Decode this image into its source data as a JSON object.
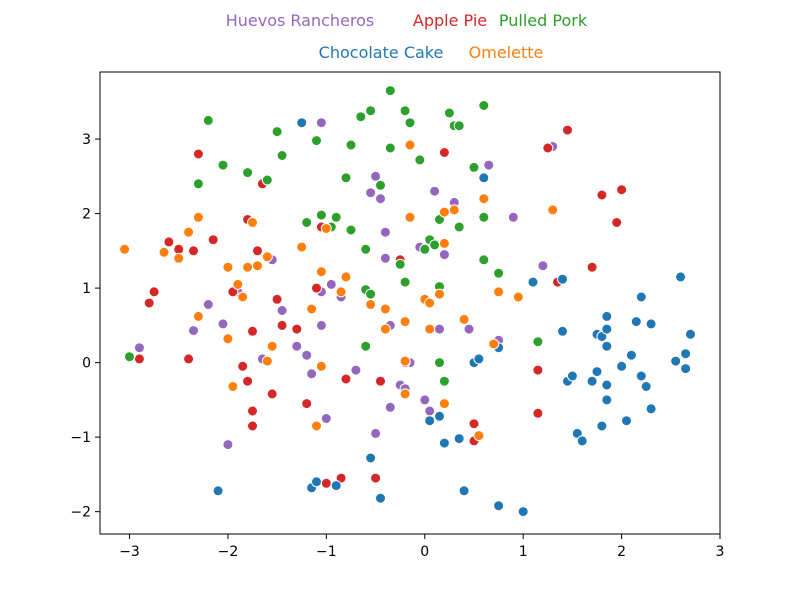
{
  "chart_data": {
    "type": "scatter",
    "title": "",
    "xlabel": "",
    "ylabel": "",
    "xlim": [
      -3.3,
      3.0
    ],
    "ylim": [
      -2.3,
      3.9
    ],
    "xticks": [
      -3,
      -2,
      -1,
      0,
      1,
      2,
      3
    ],
    "yticks": [
      -2,
      -1,
      0,
      1,
      2,
      3
    ],
    "xtick_labels": [
      "−3",
      "−2",
      "−1",
      "0",
      "1",
      "2",
      "3"
    ],
    "ytick_labels": [
      "−2",
      "−1",
      "0",
      "1",
      "2",
      "3"
    ],
    "grid": false,
    "legend_placement": "top-center",
    "series": [
      {
        "name": "Huevos Rancheros",
        "color": "#9467bd",
        "points": [
          [
            -2.9,
            0.2
          ],
          [
            -2.35,
            0.43
          ],
          [
            -2.2,
            0.78
          ],
          [
            -2.05,
            0.52
          ],
          [
            -2.0,
            -1.1
          ],
          [
            -1.9,
            0.95
          ],
          [
            -1.55,
            1.38
          ],
          [
            -1.45,
            0.7
          ],
          [
            -1.3,
            0.22
          ],
          [
            -1.2,
            0.1
          ],
          [
            -1.15,
            -0.15
          ],
          [
            -1.05,
            0.95
          ],
          [
            -1.05,
            0.5
          ],
          [
            -0.95,
            1.05
          ],
          [
            -0.85,
            0.88
          ],
          [
            -0.7,
            -0.1
          ],
          [
            -0.55,
            2.28
          ],
          [
            -0.5,
            2.5
          ],
          [
            -0.45,
            2.2
          ],
          [
            -0.4,
            1.75
          ],
          [
            -0.4,
            1.4
          ],
          [
            -0.35,
            0.5
          ],
          [
            -0.35,
            -0.6
          ],
          [
            -0.25,
            -0.3
          ],
          [
            -0.15,
            0.0
          ],
          [
            -0.05,
            1.55
          ],
          [
            0.05,
            -0.65
          ],
          [
            0.1,
            2.3
          ],
          [
            0.15,
            0.45
          ],
          [
            0.2,
            1.45
          ],
          [
            0.3,
            2.15
          ],
          [
            0.45,
            0.45
          ],
          [
            0.65,
            2.65
          ],
          [
            0.75,
            0.3
          ],
          [
            0.9,
            1.95
          ],
          [
            1.2,
            1.3
          ],
          [
            1.3,
            2.9
          ],
          [
            -1.05,
            3.22
          ],
          [
            -1.0,
            -0.75
          ],
          [
            -0.5,
            -0.95
          ],
          [
            0.0,
            -0.5
          ],
          [
            -0.2,
            -0.35
          ],
          [
            -1.65,
            0.05
          ]
        ]
      },
      {
        "name": "Apple Pie",
        "color": "#d62728",
        "points": [
          [
            -2.9,
            0.05
          ],
          [
            -2.8,
            0.8
          ],
          [
            -2.75,
            0.95
          ],
          [
            -2.6,
            1.62
          ],
          [
            -2.5,
            1.52
          ],
          [
            -2.4,
            0.05
          ],
          [
            -2.35,
            1.5
          ],
          [
            -2.3,
            2.8
          ],
          [
            -2.15,
            1.65
          ],
          [
            -1.95,
            0.95
          ],
          [
            -1.85,
            -0.05
          ],
          [
            -1.8,
            -0.25
          ],
          [
            -1.75,
            0.42
          ],
          [
            -1.75,
            -0.65
          ],
          [
            -1.7,
            1.5
          ],
          [
            -1.65,
            2.4
          ],
          [
            -1.55,
            -0.42
          ],
          [
            -1.5,
            0.85
          ],
          [
            -1.45,
            0.5
          ],
          [
            -1.3,
            0.45
          ],
          [
            -1.2,
            -0.55
          ],
          [
            -1.1,
            1.0
          ],
          [
            -1.05,
            1.82
          ],
          [
            -1.0,
            -1.62
          ],
          [
            -0.85,
            -1.55
          ],
          [
            -0.8,
            -0.22
          ],
          [
            -0.5,
            -1.55
          ],
          [
            -0.45,
            -0.25
          ],
          [
            -0.25,
            1.38
          ],
          [
            -0.2,
            0.0
          ],
          [
            0.2,
            2.82
          ],
          [
            0.5,
            -0.82
          ],
          [
            0.5,
            -1.05
          ],
          [
            1.15,
            -0.1
          ],
          [
            1.15,
            -0.68
          ],
          [
            1.25,
            2.88
          ],
          [
            1.45,
            3.12
          ],
          [
            1.7,
            1.28
          ],
          [
            1.8,
            2.25
          ],
          [
            1.95,
            1.88
          ],
          [
            2.0,
            2.32
          ],
          [
            1.35,
            1.08
          ],
          [
            -1.8,
            1.92
          ],
          [
            -1.75,
            -0.85
          ]
        ]
      },
      {
        "name": "Pulled Pork",
        "color": "#2ca02c",
        "points": [
          [
            -3.0,
            0.08
          ],
          [
            -2.3,
            2.4
          ],
          [
            -2.2,
            3.25
          ],
          [
            -2.05,
            2.65
          ],
          [
            -1.8,
            2.55
          ],
          [
            -1.6,
            2.45
          ],
          [
            -1.5,
            3.1
          ],
          [
            -1.45,
            2.78
          ],
          [
            -1.2,
            1.88
          ],
          [
            -1.1,
            2.98
          ],
          [
            -1.05,
            1.98
          ],
          [
            -0.95,
            1.82
          ],
          [
            -0.9,
            1.95
          ],
          [
            -0.8,
            2.48
          ],
          [
            -0.75,
            2.92
          ],
          [
            -0.65,
            3.3
          ],
          [
            -0.6,
            1.52
          ],
          [
            -0.6,
            0.98
          ],
          [
            -0.55,
            0.92
          ],
          [
            -0.55,
            3.38
          ],
          [
            -0.45,
            2.38
          ],
          [
            -0.35,
            3.65
          ],
          [
            -0.35,
            2.88
          ],
          [
            -0.25,
            1.32
          ],
          [
            -0.2,
            3.38
          ],
          [
            -0.2,
            1.08
          ],
          [
            -0.15,
            3.22
          ],
          [
            -0.05,
            2.72
          ],
          [
            0.0,
            1.52
          ],
          [
            0.05,
            1.65
          ],
          [
            0.1,
            1.58
          ],
          [
            0.15,
            1.92
          ],
          [
            0.15,
            0.0
          ],
          [
            0.2,
            -0.25
          ],
          [
            0.25,
            3.35
          ],
          [
            0.3,
            3.18
          ],
          [
            0.35,
            1.82
          ],
          [
            0.35,
            3.18
          ],
          [
            0.5,
            2.62
          ],
          [
            0.6,
            1.95
          ],
          [
            0.6,
            1.38
          ],
          [
            0.6,
            3.45
          ],
          [
            0.75,
            1.2
          ],
          [
            1.15,
            0.28
          ],
          [
            -0.75,
            1.78
          ],
          [
            0.15,
            1.02
          ],
          [
            -0.6,
            0.22
          ]
        ]
      },
      {
        "name": "Chocolate Cake",
        "color": "#1f77b4",
        "points": [
          [
            -2.1,
            -1.72
          ],
          [
            -1.25,
            3.22
          ],
          [
            -1.15,
            -1.68
          ],
          [
            -1.1,
            -1.6
          ],
          [
            -0.9,
            -1.65
          ],
          [
            -0.55,
            -1.28
          ],
          [
            -0.45,
            -1.82
          ],
          [
            0.05,
            -0.78
          ],
          [
            0.15,
            -0.72
          ],
          [
            0.2,
            -1.08
          ],
          [
            0.35,
            -1.02
          ],
          [
            0.4,
            -1.72
          ],
          [
            0.5,
            0.0
          ],
          [
            0.55,
            0.05
          ],
          [
            0.6,
            2.48
          ],
          [
            0.75,
            0.2
          ],
          [
            0.75,
            -1.92
          ],
          [
            1.0,
            -2.0
          ],
          [
            1.1,
            1.08
          ],
          [
            1.4,
            0.42
          ],
          [
            1.4,
            1.12
          ],
          [
            1.45,
            -0.25
          ],
          [
            1.5,
            -0.18
          ],
          [
            1.55,
            -0.95
          ],
          [
            1.6,
            -1.05
          ],
          [
            1.7,
            -0.25
          ],
          [
            1.75,
            0.38
          ],
          [
            1.75,
            -0.12
          ],
          [
            1.8,
            0.35
          ],
          [
            1.8,
            -0.85
          ],
          [
            1.85,
            0.45
          ],
          [
            1.85,
            0.62
          ],
          [
            1.85,
            0.22
          ],
          [
            1.85,
            -0.3
          ],
          [
            1.85,
            -0.5
          ],
          [
            2.0,
            -0.05
          ],
          [
            2.05,
            -0.78
          ],
          [
            2.1,
            0.1
          ],
          [
            2.15,
            0.55
          ],
          [
            2.2,
            -0.18
          ],
          [
            2.2,
            0.88
          ],
          [
            2.25,
            -0.32
          ],
          [
            2.3,
            0.52
          ],
          [
            2.3,
            -0.62
          ],
          [
            2.55,
            0.02
          ],
          [
            2.6,
            1.15
          ],
          [
            2.65,
            -0.08
          ],
          [
            2.65,
            0.12
          ],
          [
            2.7,
            0.38
          ]
        ]
      },
      {
        "name": "Omelette",
        "color": "#ff7f0e",
        "points": [
          [
            -3.05,
            1.52
          ],
          [
            -2.65,
            1.48
          ],
          [
            -2.5,
            1.4
          ],
          [
            -2.4,
            1.75
          ],
          [
            -2.3,
            0.62
          ],
          [
            -2.3,
            1.95
          ],
          [
            -2.0,
            1.28
          ],
          [
            -2.0,
            0.32
          ],
          [
            -1.95,
            -0.32
          ],
          [
            -1.9,
            1.05
          ],
          [
            -1.85,
            0.88
          ],
          [
            -1.8,
            1.28
          ],
          [
            -1.75,
            1.88
          ],
          [
            -1.7,
            1.3
          ],
          [
            -1.6,
            1.42
          ],
          [
            -1.6,
            0.02
          ],
          [
            -1.55,
            0.22
          ],
          [
            -1.25,
            1.55
          ],
          [
            -1.15,
            0.72
          ],
          [
            -1.1,
            -0.85
          ],
          [
            -1.05,
            -0.05
          ],
          [
            -1.05,
            1.22
          ],
          [
            -1.0,
            1.8
          ],
          [
            -0.85,
            0.95
          ],
          [
            -0.8,
            1.15
          ],
          [
            -0.55,
            0.78
          ],
          [
            -0.4,
            0.72
          ],
          [
            -0.4,
            0.45
          ],
          [
            -0.2,
            0.55
          ],
          [
            -0.2,
            0.02
          ],
          [
            -0.15,
            1.95
          ],
          [
            -0.15,
            2.92
          ],
          [
            0.0,
            0.85
          ],
          [
            0.05,
            0.8
          ],
          [
            0.15,
            0.92
          ],
          [
            0.2,
            1.6
          ],
          [
            0.2,
            2.02
          ],
          [
            0.2,
            -0.55
          ],
          [
            0.3,
            2.05
          ],
          [
            0.4,
            0.58
          ],
          [
            0.55,
            -0.98
          ],
          [
            0.6,
            2.2
          ],
          [
            0.7,
            0.25
          ],
          [
            0.75,
            0.95
          ],
          [
            0.95,
            0.88
          ],
          [
            1.3,
            2.05
          ],
          [
            -0.2,
            -0.42
          ],
          [
            0.05,
            0.45
          ]
        ]
      }
    ]
  }
}
